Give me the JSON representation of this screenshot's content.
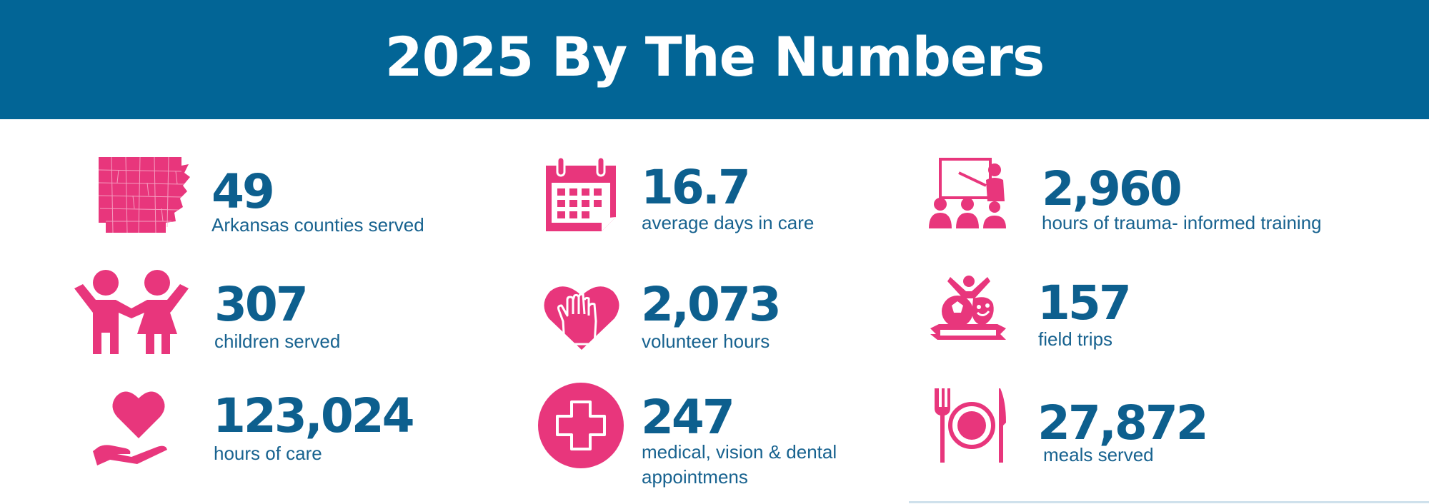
{
  "title": "2025 By The Numbers",
  "colors": {
    "header_bg": "#026596",
    "accent": "#e8367c",
    "number": "#0d5f8e"
  },
  "stats": [
    {
      "icon": "arkansas-map-icon",
      "value": "49",
      "label": "Arkansas counties served"
    },
    {
      "icon": "calendar-icon",
      "value": "16.7",
      "label": "average days in care"
    },
    {
      "icon": "training-presentation-icon",
      "value": "2,960",
      "label": "hours of trauma- informed training"
    },
    {
      "icon": "children-icon",
      "value": "307",
      "label": "children served"
    },
    {
      "icon": "volunteer-hands-heart-icon",
      "value": "2,073",
      "label": "volunteer hours"
    },
    {
      "icon": "activities-badge-icon",
      "value": "157",
      "label": "field trips"
    },
    {
      "icon": "heart-in-hand-icon",
      "value": "123,024",
      "label": "hours of care"
    },
    {
      "icon": "medical-cross-icon",
      "value": "247",
      "label_line1": "medical, vision & dental",
      "label_line2": "appointmens"
    },
    {
      "icon": "plate-fork-knife-icon",
      "value": "27,872",
      "label": "meals served"
    }
  ]
}
